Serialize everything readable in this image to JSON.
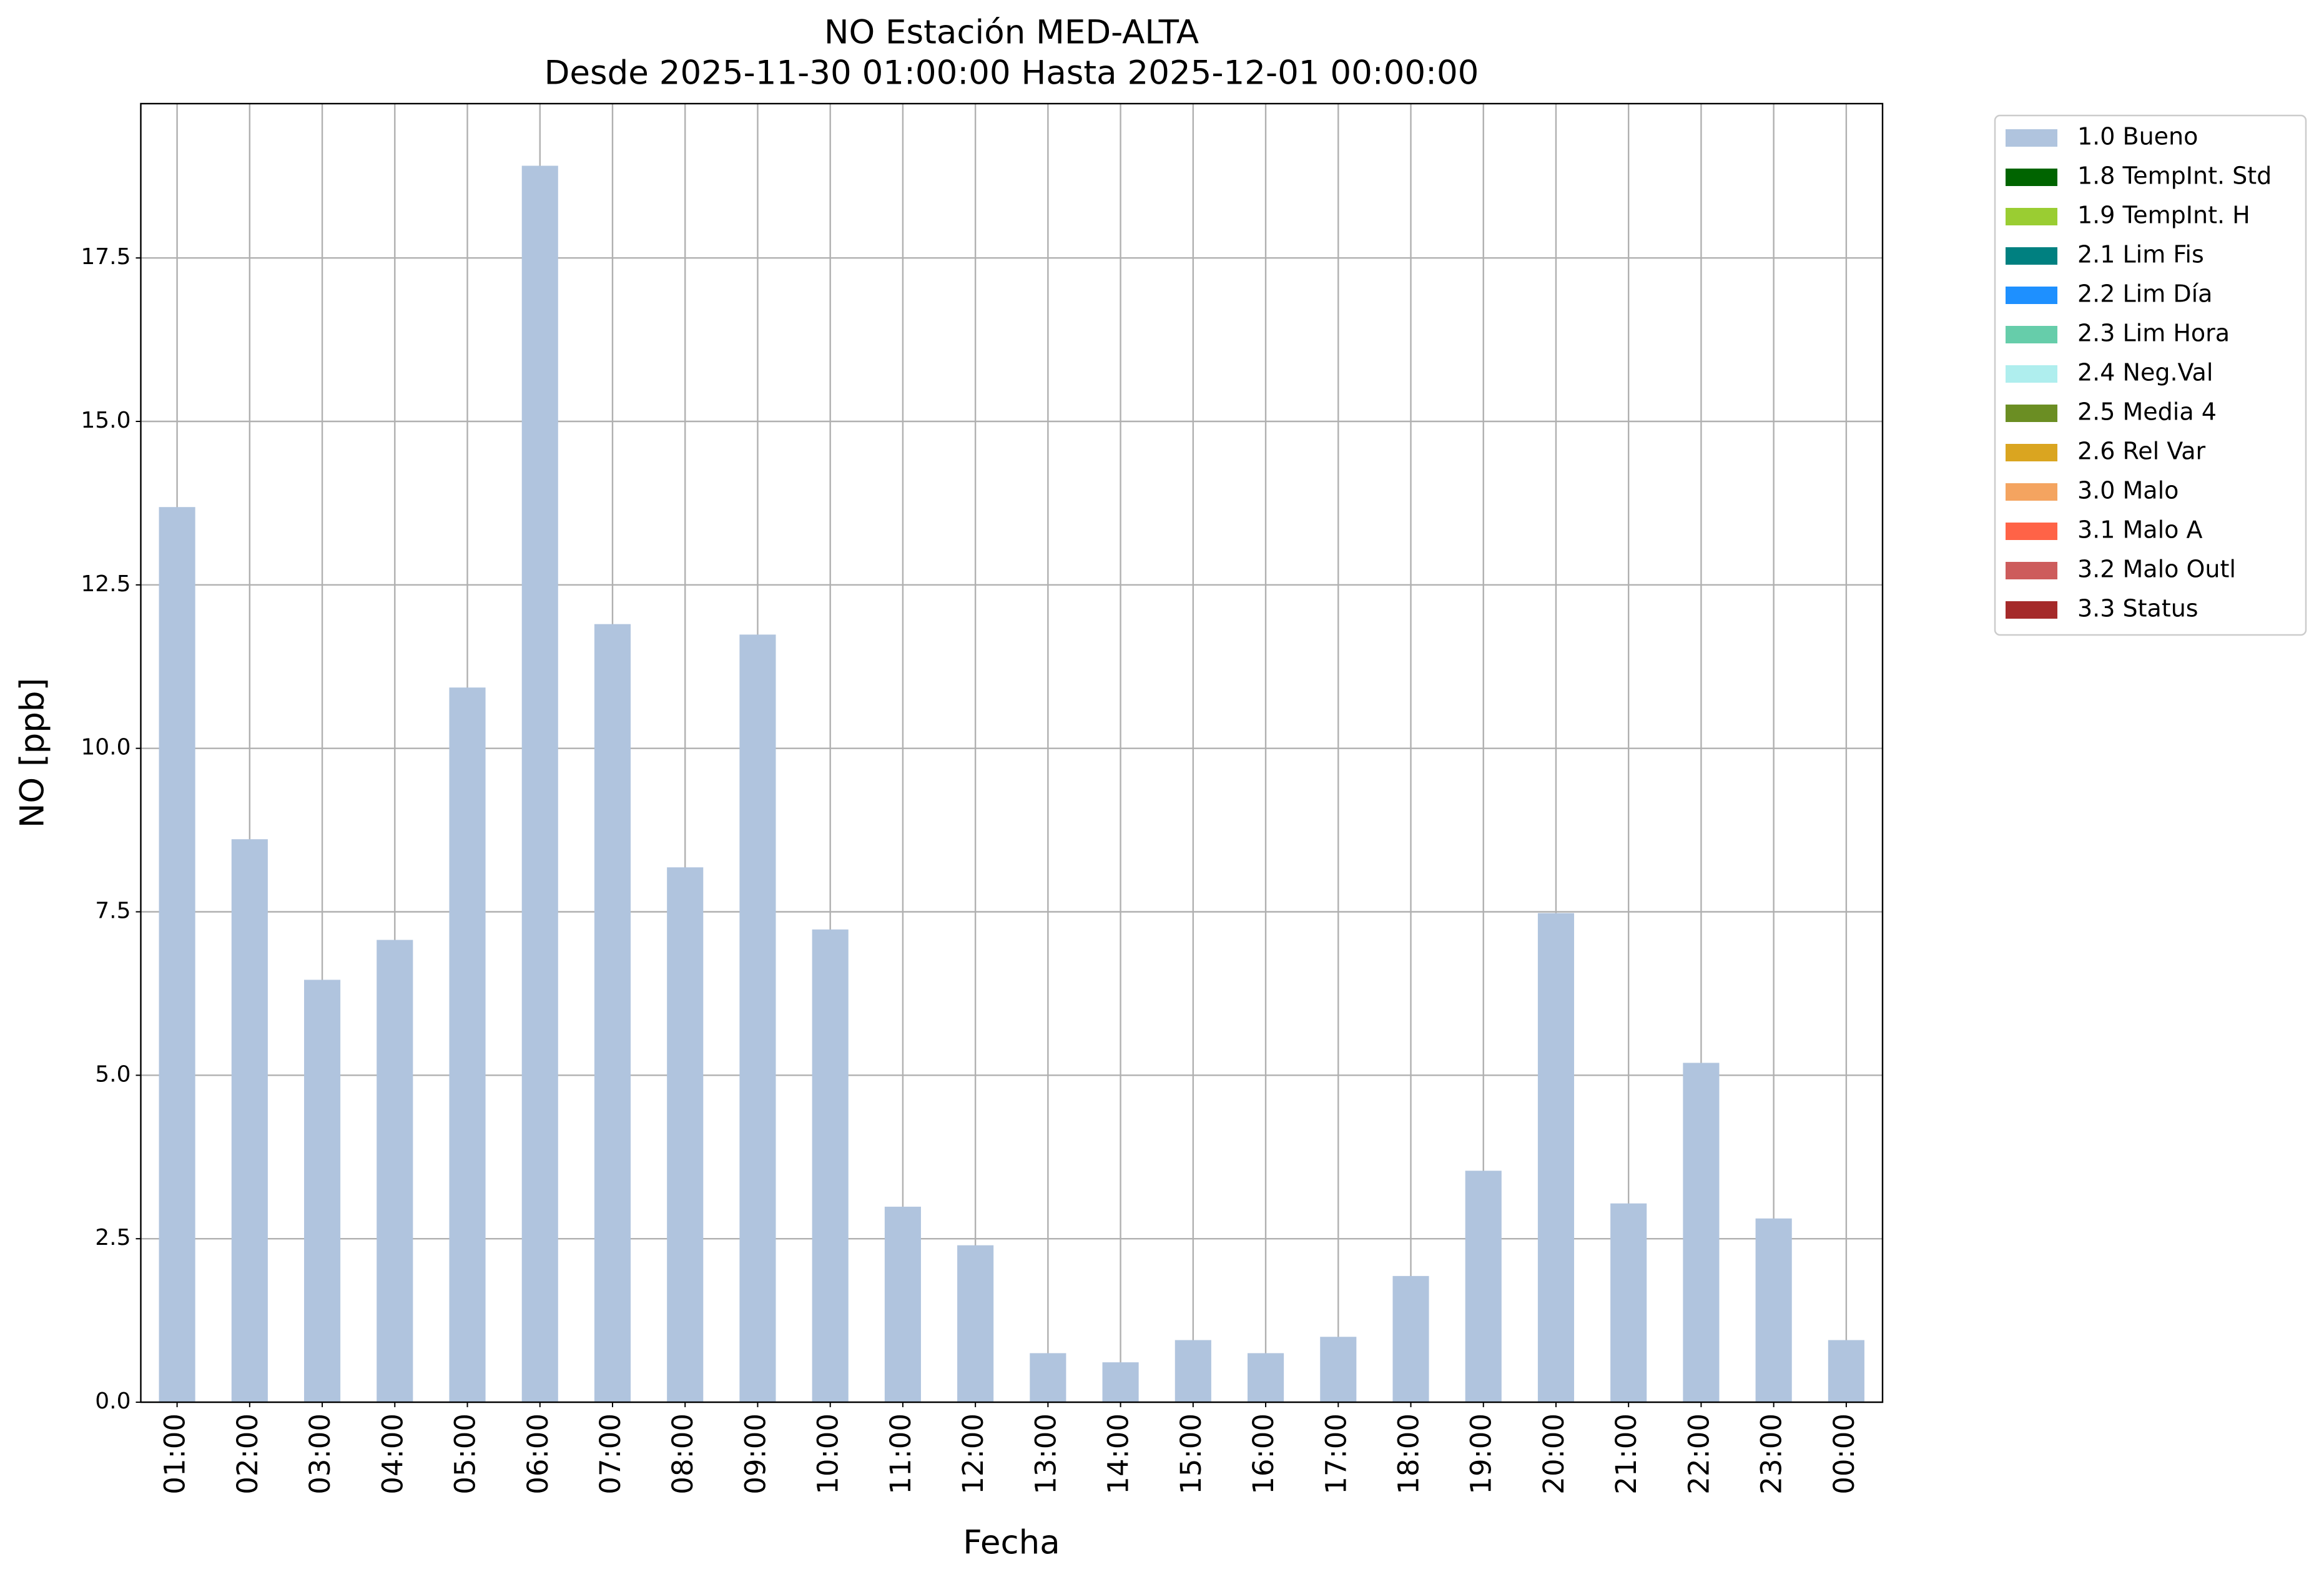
{
  "chart_data": {
    "type": "stacked_bar",
    "title": "NO Estación MED-ALTA",
    "subtitle": "Desde 2025-11-30 01:00:00 Hasta 2025-12-01 00:00:00",
    "x_label": "Fecha",
    "y_label": "NO [ppb]",
    "categories": [
      "01:00",
      "02:00",
      "03:00",
      "04:00",
      "05:00",
      "06:00",
      "07:00",
      "08:00",
      "09:00",
      "10:00",
      "11:00",
      "12:00",
      "13:00",
      "14:00",
      "15:00",
      "16:00",
      "17:00",
      "18:00",
      "19:00",
      "20:00",
      "21:00",
      "22:00",
      "23:00",
      "00:00"
    ],
    "series": [
      {
        "name": "1.0 Bueno",
        "color": "#b0c4de",
        "values": [
          13.69,
          8.61,
          6.46,
          7.07,
          10.93,
          18.91,
          11.9,
          8.18,
          11.74,
          7.23,
          2.99,
          2.4,
          0.75,
          0.61,
          0.95,
          0.75,
          1.0,
          1.93,
          3.54,
          7.48,
          3.04,
          5.19,
          2.81,
          0.95
        ]
      },
      {
        "name": "1.8 TempInt. Std",
        "color": "#006400",
        "values": [
          0,
          0,
          0,
          0,
          0,
          0,
          0,
          0,
          0,
          0,
          0,
          0,
          0,
          0,
          0,
          0,
          0,
          0,
          0,
          0,
          0,
          0,
          0,
          0
        ]
      },
      {
        "name": "1.9 TempInt. H",
        "color": "#9acd32",
        "values": [
          0,
          0,
          0,
          0,
          0,
          0,
          0,
          0,
          0,
          0,
          0,
          0,
          0,
          0,
          0,
          0,
          0,
          0,
          0,
          0,
          0,
          0,
          0,
          0
        ]
      },
      {
        "name": "2.1 Lim Fis",
        "color": "#008080",
        "values": [
          0,
          0,
          0,
          0,
          0,
          0,
          0,
          0,
          0,
          0,
          0,
          0,
          0,
          0,
          0,
          0,
          0,
          0,
          0,
          0,
          0,
          0,
          0,
          0
        ]
      },
      {
        "name": "2.2 Lim Día",
        "color": "#1e90ff",
        "values": [
          0,
          0,
          0,
          0,
          0,
          0,
          0,
          0,
          0,
          0,
          0,
          0,
          0,
          0,
          0,
          0,
          0,
          0,
          0,
          0,
          0,
          0,
          0,
          0
        ]
      },
      {
        "name": "2.3 Lim Hora",
        "color": "#66cdaa",
        "values": [
          0,
          0,
          0,
          0,
          0,
          0,
          0,
          0,
          0,
          0,
          0,
          0,
          0,
          0,
          0,
          0,
          0,
          0,
          0,
          0,
          0,
          0,
          0,
          0
        ]
      },
      {
        "name": "2.4 Neg.Val",
        "color": "#afeeee",
        "values": [
          0,
          0,
          0,
          0,
          0,
          0,
          0,
          0,
          0,
          0,
          0,
          0,
          0,
          0,
          0,
          0,
          0,
          0,
          0,
          0,
          0,
          0,
          0,
          0
        ]
      },
      {
        "name": "2.5 Media 4",
        "color": "#6b8e23",
        "values": [
          0,
          0,
          0,
          0,
          0,
          0,
          0,
          0,
          0,
          0,
          0,
          0,
          0,
          0,
          0,
          0,
          0,
          0,
          0,
          0,
          0,
          0,
          0,
          0
        ]
      },
      {
        "name": "2.6 Rel Var",
        "color": "#daa520",
        "values": [
          0,
          0,
          0,
          0,
          0,
          0,
          0,
          0,
          0,
          0,
          0,
          0,
          0,
          0,
          0,
          0,
          0,
          0,
          0,
          0,
          0,
          0,
          0,
          0
        ]
      },
      {
        "name": "3.0 Malo",
        "color": "#f4a460",
        "values": [
          0,
          0,
          0,
          0,
          0,
          0,
          0,
          0,
          0,
          0,
          0,
          0,
          0,
          0,
          0,
          0,
          0,
          0,
          0,
          0,
          0,
          0,
          0,
          0
        ]
      },
      {
        "name": "3.1 Malo A",
        "color": "#ff6347",
        "values": [
          0,
          0,
          0,
          0,
          0,
          0,
          0,
          0,
          0,
          0,
          0,
          0,
          0,
          0,
          0,
          0,
          0,
          0,
          0,
          0,
          0,
          0,
          0,
          0
        ]
      },
      {
        "name": "3.2 Malo Outl",
        "color": "#cd5c5c",
        "values": [
          0,
          0,
          0,
          0,
          0,
          0,
          0,
          0,
          0,
          0,
          0,
          0,
          0,
          0,
          0,
          0,
          0,
          0,
          0,
          0,
          0,
          0,
          0,
          0
        ]
      },
      {
        "name": "3.3 Status",
        "color": "#a52a2a",
        "values": [
          0,
          0,
          0,
          0,
          0,
          0,
          0,
          0,
          0,
          0,
          0,
          0,
          0,
          0,
          0,
          0,
          0,
          0,
          0,
          0,
          0,
          0,
          0,
          0
        ]
      }
    ],
    "ylim": [
      0,
      19.86
    ],
    "yticks": [
      {
        "value": 0,
        "label": "0.0"
      },
      2.5,
      {
        "value": 5,
        "label": "5.0"
      },
      7.5,
      {
        "value": 10,
        "label": "10.0"
      },
      12.5,
      {
        "value": 15,
        "label": "15.0"
      },
      17.5
    ],
    "grid": true,
    "legend": "outside-right"
  }
}
